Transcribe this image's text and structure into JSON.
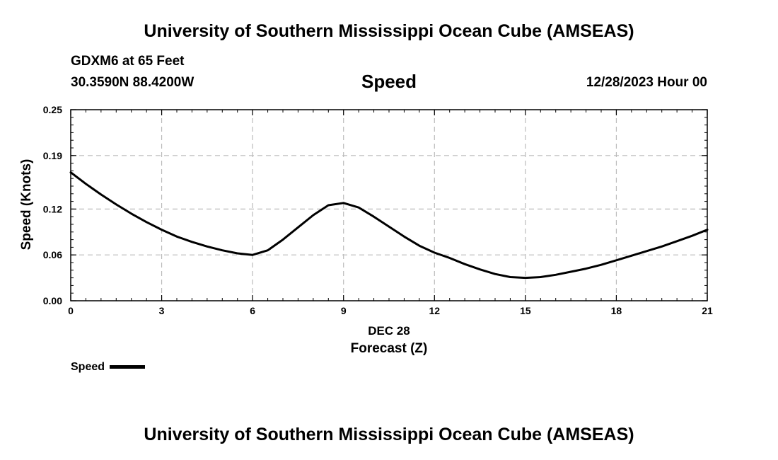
{
  "header": {
    "title": "University of Southern Mississippi Ocean Cube (AMSEAS)",
    "station": "GDXM6 at 65 Feet",
    "coords": "30.3590N  88.4200W",
    "datetime": "12/28/2023 Hour 00"
  },
  "footer": {
    "title": "University of Southern Mississippi Ocean Cube (AMSEAS)"
  },
  "chart_data": {
    "type": "line",
    "title": "Speed",
    "xlabel": "Forecast (Z)",
    "date_label": "DEC 28",
    "ylabel": "Speed (Knots)",
    "xlim": [
      0,
      21
    ],
    "ylim": [
      0,
      0.25
    ],
    "x_ticks": [
      0,
      3,
      6,
      9,
      12,
      15,
      18,
      21
    ],
    "x_tick_labels": [
      "0",
      "3",
      "6",
      "9",
      "12",
      "15",
      "18",
      "21"
    ],
    "y_ticks": [
      0.0,
      0.06,
      0.12,
      0.19,
      0.25
    ],
    "y_tick_labels": [
      "0.00",
      "0.06",
      "0.12",
      "0.19",
      "0.25"
    ],
    "grid": true,
    "legend": [
      {
        "name": "Speed",
        "color": "#000000"
      }
    ],
    "series": [
      {
        "name": "Speed",
        "color": "#000000",
        "x": [
          0,
          0.5,
          1,
          1.5,
          2,
          2.5,
          3,
          3.5,
          4,
          4.5,
          5,
          5.5,
          6,
          6.5,
          7,
          7.5,
          8,
          8.5,
          9,
          9.5,
          10,
          10.5,
          11,
          11.5,
          12,
          12.5,
          13,
          13.5,
          14,
          14.5,
          15,
          15.5,
          16,
          16.5,
          17,
          17.5,
          18,
          18.5,
          19,
          19.5,
          20,
          20.5,
          21
        ],
        "values": [
          0.168,
          0.153,
          0.139,
          0.126,
          0.114,
          0.103,
          0.093,
          0.084,
          0.077,
          0.071,
          0.066,
          0.062,
          0.06,
          0.066,
          0.08,
          0.096,
          0.112,
          0.125,
          0.128,
          0.122,
          0.11,
          0.097,
          0.084,
          0.072,
          0.063,
          0.056,
          0.048,
          0.041,
          0.035,
          0.031,
          0.03,
          0.031,
          0.034,
          0.038,
          0.042,
          0.047,
          0.053,
          0.059,
          0.065,
          0.071,
          0.078,
          0.085,
          0.093
        ]
      }
    ]
  }
}
